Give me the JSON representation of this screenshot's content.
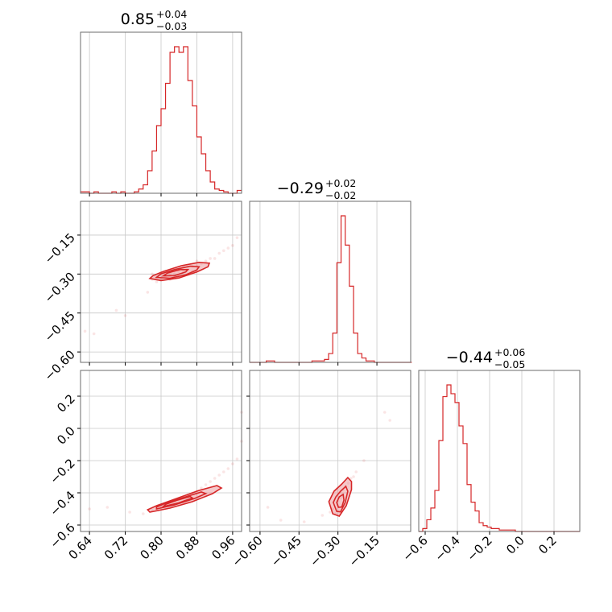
{
  "chart_data": {
    "type": "corner",
    "color": "#d62728",
    "parameters": [
      {
        "title_median": "0.85",
        "title_plus": "+0.04",
        "title_minus": "−0.03",
        "range": [
          0.62,
          0.98
        ],
        "ticks": [
          0.64,
          0.72,
          0.8,
          0.88,
          0.96
        ],
        "tick_labels": [
          "0.64",
          "0.72",
          "0.80",
          "0.88",
          "0.96"
        ],
        "hist_bins": [
          0.62,
          0.63,
          0.64,
          0.65,
          0.66,
          0.67,
          0.68,
          0.69,
          0.7,
          0.71,
          0.72,
          0.73,
          0.74,
          0.75,
          0.76,
          0.77,
          0.78,
          0.79,
          0.8,
          0.81,
          0.82,
          0.83,
          0.84,
          0.85,
          0.86,
          0.87,
          0.88,
          0.89,
          0.9,
          0.91,
          0.92,
          0.93,
          0.94,
          0.95,
          0.96,
          0.97,
          0.98
        ],
        "hist_counts": [
          1,
          1,
          0,
          1,
          0,
          0,
          0,
          1,
          0,
          1,
          0,
          0,
          1,
          3,
          6,
          16,
          30,
          48,
          60,
          78,
          100,
          104,
          100,
          104,
          80,
          62,
          40,
          28,
          16,
          8,
          3,
          2,
          1,
          0,
          0,
          2
        ]
      },
      {
        "title_median": "−0.29",
        "title_plus": "+0.02",
        "title_minus": "−0.02",
        "range": [
          -0.64,
          -0.02
        ],
        "ticks": [
          -0.6,
          -0.45,
          -0.3,
          -0.15
        ],
        "tick_labels": [
          "−0.60",
          "−0.45",
          "−0.30",
          "−0.15"
        ],
        "hist_bins": [
          -0.64,
          -0.624,
          -0.608,
          -0.592,
          -0.576,
          -0.56,
          -0.544,
          -0.528,
          -0.512,
          -0.496,
          -0.48,
          -0.464,
          -0.448,
          -0.432,
          -0.416,
          -0.4,
          -0.384,
          -0.368,
          -0.352,
          -0.336,
          -0.32,
          -0.304,
          -0.288,
          -0.272,
          -0.256,
          -0.24,
          -0.224,
          -0.208,
          -0.192,
          -0.176,
          -0.16,
          -0.144,
          -0.128,
          -0.112,
          -0.096,
          -0.08,
          -0.064,
          -0.048,
          -0.032,
          -0.016
        ],
        "hist_counts": [
          0,
          0,
          0,
          0,
          1,
          1,
          0,
          0,
          0,
          0,
          0,
          0,
          0,
          0,
          0,
          1,
          1,
          1,
          2,
          6,
          20,
          68,
          100,
          80,
          52,
          20,
          6,
          3,
          1,
          1,
          0,
          0,
          0,
          0,
          0,
          0,
          0,
          0,
          0
        ]
      },
      {
        "title_median": "−0.44",
        "title_plus": "+0.06",
        "title_minus": "−0.05",
        "range": [
          -0.64,
          0.36
        ],
        "ticks": [
          -0.6,
          -0.4,
          -0.2,
          0.0,
          0.2
        ],
        "tick_labels": [
          "−0.6",
          "−0.4",
          "−0.2",
          "0.0",
          "0.2"
        ],
        "hist_bins": [
          -0.64,
          -0.615,
          -0.59,
          -0.565,
          -0.54,
          -0.515,
          -0.49,
          -0.465,
          -0.44,
          -0.415,
          -0.39,
          -0.365,
          -0.34,
          -0.315,
          -0.29,
          -0.265,
          -0.24,
          -0.215,
          -0.19,
          -0.165,
          -0.14,
          -0.115,
          -0.09,
          -0.065,
          -0.04,
          -0.015,
          0.01,
          0.035,
          0.06,
          0.085,
          0.11,
          0.135,
          0.16,
          0.185,
          0.21,
          0.235,
          0.26,
          0.285,
          0.31,
          0.335,
          0.36
        ],
        "hist_counts": [
          0,
          2,
          8,
          16,
          28,
          62,
          92,
          100,
          94,
          88,
          72,
          60,
          32,
          20,
          14,
          6,
          4,
          3,
          2,
          2,
          1,
          1,
          1,
          1,
          0,
          0,
          0,
          0,
          0,
          0,
          0,
          0,
          0,
          0,
          0,
          0,
          0,
          0,
          0,
          0
        ]
      }
    ],
    "pairs": [
      {
        "row": 1,
        "col": 0,
        "scatter": [
          [
            0.63,
            -0.52
          ],
          [
            0.65,
            -0.53
          ],
          [
            0.7,
            -0.44
          ],
          [
            0.72,
            -0.46
          ],
          [
            0.77,
            -0.37
          ],
          [
            0.78,
            -0.32
          ],
          [
            0.78,
            -0.3
          ],
          [
            0.79,
            -0.31
          ],
          [
            0.79,
            -0.33
          ],
          [
            0.8,
            -0.32
          ],
          [
            0.8,
            -0.3
          ],
          [
            0.81,
            -0.31
          ],
          [
            0.81,
            -0.29
          ],
          [
            0.82,
            -0.3
          ],
          [
            0.82,
            -0.32
          ],
          [
            0.83,
            -0.3
          ],
          [
            0.83,
            -0.28
          ],
          [
            0.84,
            -0.29
          ],
          [
            0.84,
            -0.31
          ],
          [
            0.85,
            -0.29
          ],
          [
            0.85,
            -0.27
          ],
          [
            0.86,
            -0.28
          ],
          [
            0.86,
            -0.3
          ],
          [
            0.87,
            -0.27
          ],
          [
            0.87,
            -0.29
          ],
          [
            0.88,
            -0.27
          ],
          [
            0.88,
            -0.25
          ],
          [
            0.89,
            -0.26
          ],
          [
            0.9,
            -0.25
          ],
          [
            0.91,
            -0.24
          ],
          [
            0.92,
            -0.24
          ],
          [
            0.93,
            -0.22
          ],
          [
            0.94,
            -0.21
          ],
          [
            0.95,
            -0.2
          ],
          [
            0.96,
            -0.19
          ],
          [
            0.97,
            -0.16
          ]
        ],
        "contours": [
          [
            [
              0.775,
              -0.317
            ],
            [
              0.8,
              -0.325
            ],
            [
              0.84,
              -0.315
            ],
            [
              0.88,
              -0.292
            ],
            [
              0.905,
              -0.272
            ],
            [
              0.908,
              -0.258
            ],
            [
              0.885,
              -0.255
            ],
            [
              0.845,
              -0.268
            ],
            [
              0.805,
              -0.29
            ],
            [
              0.782,
              -0.306
            ]
          ],
          [
            [
              0.79,
              -0.313
            ],
            [
              0.82,
              -0.316
            ],
            [
              0.855,
              -0.303
            ],
            [
              0.88,
              -0.284
            ],
            [
              0.885,
              -0.272
            ],
            [
              0.865,
              -0.27
            ],
            [
              0.83,
              -0.283
            ],
            [
              0.8,
              -0.299
            ]
          ],
          [
            [
              0.805,
              -0.307
            ],
            [
              0.83,
              -0.306
            ],
            [
              0.855,
              -0.292
            ],
            [
              0.86,
              -0.283
            ],
            [
              0.842,
              -0.283
            ],
            [
              0.815,
              -0.296
            ]
          ]
        ]
      },
      {
        "row": 2,
        "col": 0,
        "scatter": [
          [
            0.64,
            -0.5
          ],
          [
            0.68,
            -0.49
          ],
          [
            0.73,
            -0.52
          ],
          [
            0.76,
            -0.53
          ],
          [
            0.78,
            -0.51
          ],
          [
            0.8,
            -0.48
          ],
          [
            0.82,
            -0.46
          ],
          [
            0.83,
            -0.45
          ],
          [
            0.84,
            -0.44
          ],
          [
            0.85,
            -0.43
          ],
          [
            0.86,
            -0.42
          ],
          [
            0.87,
            -0.4
          ],
          [
            0.88,
            -0.39
          ],
          [
            0.89,
            -0.37
          ],
          [
            0.9,
            -0.35
          ],
          [
            0.91,
            -0.33
          ],
          [
            0.92,
            -0.31
          ],
          [
            0.93,
            -0.29
          ],
          [
            0.94,
            -0.27
          ],
          [
            0.95,
            -0.25
          ],
          [
            0.96,
            -0.22
          ],
          [
            0.97,
            -0.19
          ],
          [
            0.98,
            -0.08
          ],
          [
            0.98,
            0.1
          ]
        ],
        "contours": [
          [
            [
              0.775,
              -0.52
            ],
            [
              0.82,
              -0.495
            ],
            [
              0.87,
              -0.455
            ],
            [
              0.915,
              -0.405
            ],
            [
              0.935,
              -0.37
            ],
            [
              0.925,
              -0.355
            ],
            [
              0.885,
              -0.385
            ],
            [
              0.84,
              -0.43
            ],
            [
              0.79,
              -0.48
            ],
            [
              0.77,
              -0.505
            ]
          ],
          [
            [
              0.79,
              -0.5
            ],
            [
              0.83,
              -0.475
            ],
            [
              0.875,
              -0.435
            ],
            [
              0.9,
              -0.405
            ],
            [
              0.89,
              -0.395
            ],
            [
              0.855,
              -0.425
            ],
            [
              0.81,
              -0.465
            ],
            [
              0.79,
              -0.488
            ]
          ],
          [
            [
              0.805,
              -0.485
            ],
            [
              0.84,
              -0.462
            ],
            [
              0.87,
              -0.432
            ],
            [
              0.865,
              -0.423
            ],
            [
              0.835,
              -0.447
            ],
            [
              0.81,
              -0.472
            ]
          ]
        ]
      },
      {
        "row": 2,
        "col": 1,
        "scatter": [
          [
            -0.57,
            -0.49
          ],
          [
            -0.52,
            -0.57
          ],
          [
            -0.43,
            -0.58
          ],
          [
            -0.36,
            -0.54
          ],
          [
            -0.33,
            -0.52
          ],
          [
            -0.32,
            -0.5
          ],
          [
            -0.31,
            -0.53
          ],
          [
            -0.3,
            -0.48
          ],
          [
            -0.3,
            -0.45
          ],
          [
            -0.29,
            -0.43
          ],
          [
            -0.29,
            -0.4
          ],
          [
            -0.28,
            -0.41
          ],
          [
            -0.28,
            -0.38
          ],
          [
            -0.27,
            -0.36
          ],
          [
            -0.26,
            -0.34
          ],
          [
            -0.25,
            -0.31
          ],
          [
            -0.24,
            -0.3
          ],
          [
            -0.23,
            -0.27
          ],
          [
            -0.2,
            -0.2
          ],
          [
            -0.12,
            0.1
          ],
          [
            -0.1,
            0.05
          ]
        ],
        "contours": [
          [
            [
              -0.335,
              -0.455
            ],
            [
              -0.32,
              -0.53
            ],
            [
              -0.295,
              -0.545
            ],
            [
              -0.268,
              -0.48
            ],
            [
              -0.248,
              -0.38
            ],
            [
              -0.248,
              -0.33
            ],
            [
              -0.262,
              -0.305
            ],
            [
              -0.285,
              -0.345
            ],
            [
              -0.315,
              -0.39
            ]
          ],
          [
            [
              -0.318,
              -0.46
            ],
            [
              -0.305,
              -0.515
            ],
            [
              -0.29,
              -0.518
            ],
            [
              -0.272,
              -0.46
            ],
            [
              -0.262,
              -0.39
            ],
            [
              -0.27,
              -0.36
            ],
            [
              -0.29,
              -0.39
            ],
            [
              -0.308,
              -0.425
            ]
          ],
          [
            [
              -0.305,
              -0.46
            ],
            [
              -0.298,
              -0.49
            ],
            [
              -0.285,
              -0.488
            ],
            [
              -0.277,
              -0.445
            ],
            [
              -0.28,
              -0.41
            ],
            [
              -0.295,
              -0.425
            ]
          ]
        ]
      }
    ]
  }
}
